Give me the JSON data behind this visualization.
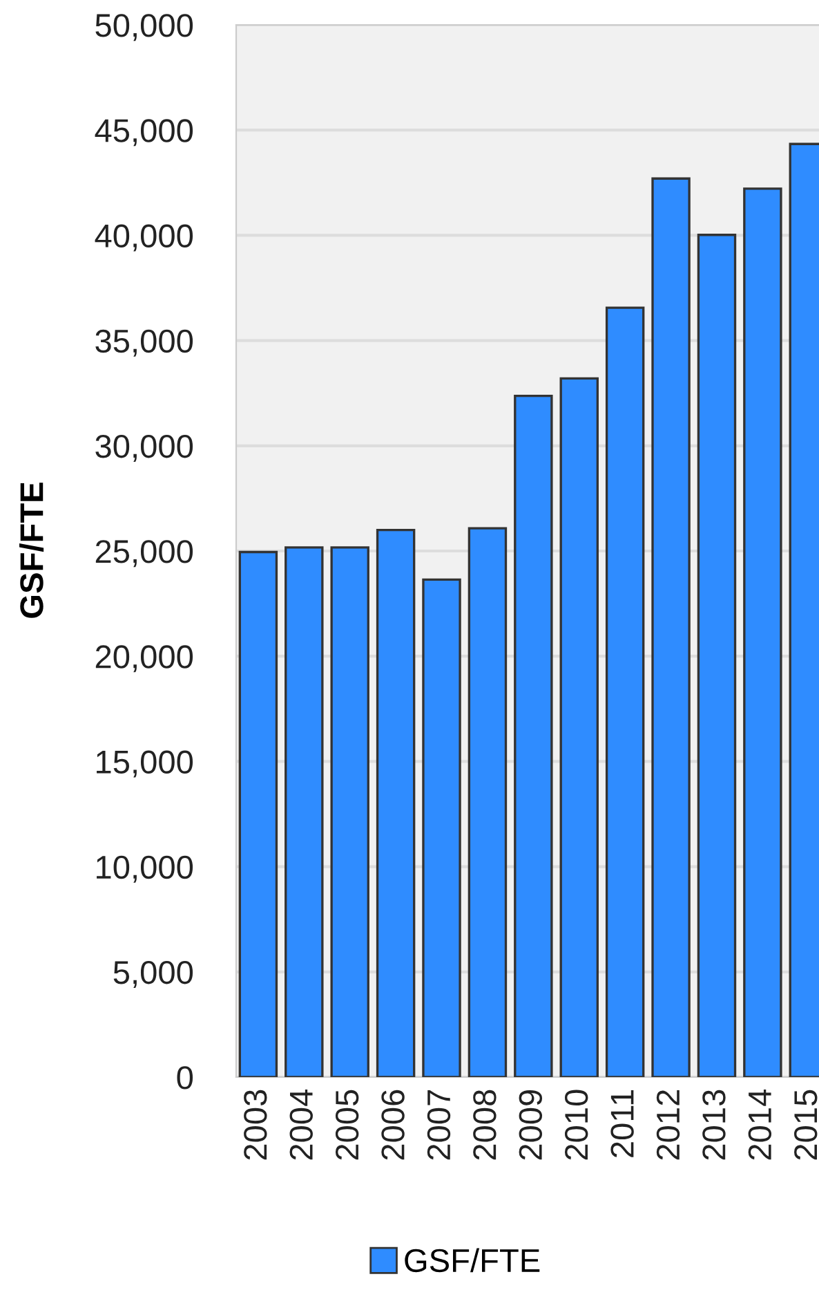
{
  "chart_data": {
    "type": "bar",
    "ylabel": "GSF/FTE",
    "categories": [
      "2003",
      "2004",
      "2005",
      "2006",
      "2007",
      "2008",
      "2009",
      "2010",
      "2011",
      "2012",
      "2013",
      "2014",
      "2015"
    ],
    "series": [
      {
        "name": "GSF/FTE",
        "color": "#2f8cff",
        "values": [
          24950,
          25170,
          25170,
          26000,
          23640,
          26080,
          32370,
          33200,
          36560,
          42700,
          40020,
          42220,
          44340
        ]
      }
    ],
    "ylim": [
      0,
      50000
    ],
    "yticks": [
      {
        "value": 0,
        "label": "0"
      },
      {
        "value": 5000,
        "label": "5,000"
      },
      {
        "value": 10000,
        "label": "10,000"
      },
      {
        "value": 15000,
        "label": "15,000"
      },
      {
        "value": 20000,
        "label": "20,000"
      },
      {
        "value": 25000,
        "label": "25,000"
      },
      {
        "value": 30000,
        "label": "30,000"
      },
      {
        "value": 35000,
        "label": "35,000"
      },
      {
        "value": 40000,
        "label": "40,000"
      },
      {
        "value": 45000,
        "label": "45,000"
      },
      {
        "value": 50000,
        "label": "50,000"
      }
    ],
    "grid": "y",
    "legend": "bottom"
  }
}
